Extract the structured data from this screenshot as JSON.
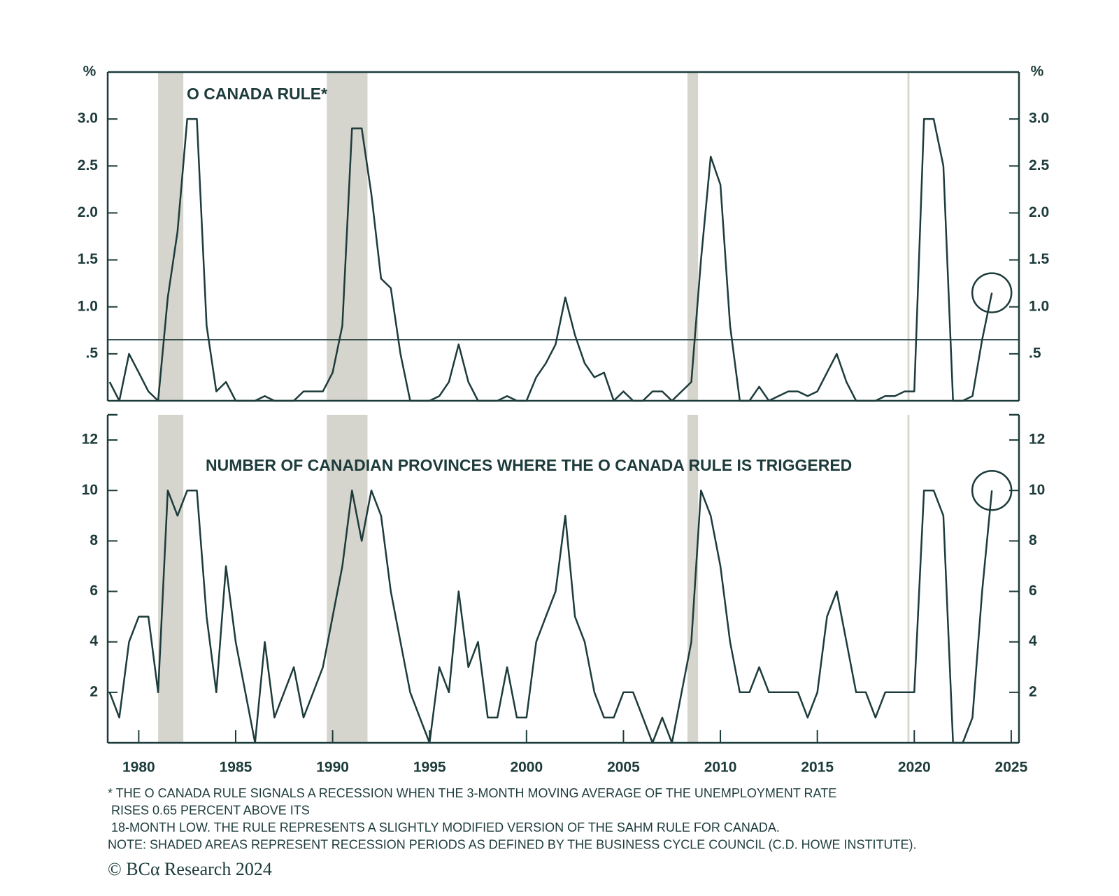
{
  "chart_data": [
    {
      "type": "line",
      "title": "O CANADA RULE*",
      "y_label": "%",
      "y2_label": "%",
      "xlim": [
        1978.4,
        2025.4
      ],
      "ylim": [
        0,
        3.5
      ],
      "y2lim": [
        0,
        3.5
      ],
      "yticks": [
        {
          "value": 0.5,
          "label": ".5"
        },
        {
          "value": 1,
          "label": "1.0"
        },
        {
          "value": 1.5,
          "label": "1.5"
        },
        {
          "value": 2,
          "label": "2.0"
        },
        {
          "value": 2.5,
          "label": "2.5"
        },
        {
          "value": 3,
          "label": "3.0"
        }
      ],
      "y2ticks": [
        {
          "value": 0.5,
          "label": ".5"
        },
        {
          "value": 1,
          "label": "1.0"
        },
        {
          "value": 1.5,
          "label": "1.5"
        },
        {
          "value": 2,
          "label": "2.0"
        },
        {
          "value": 2.5,
          "label": "2.5"
        },
        {
          "value": 3,
          "label": "3.0"
        }
      ],
      "threshold": 0.65,
      "recessions": [
        [
          1981.0,
          1982.3
        ],
        [
          1989.7,
          1991.8
        ],
        [
          2008.3,
          2008.85
        ],
        [
          2019.65,
          2019.75
        ]
      ],
      "recession_color": "#d5d5cd",
      "x": [
        1978.5,
        1979,
        1979.5,
        1980,
        1980.5,
        1981,
        1981.5,
        1982,
        1982.5,
        1983,
        1983.5,
        1984,
        1984.5,
        1985,
        1985.5,
        1986,
        1986.5,
        1987,
        1987.5,
        1988,
        1988.5,
        1989,
        1989.5,
        1990,
        1990.5,
        1991,
        1991.5,
        1992,
        1992.5,
        1993,
        1993.5,
        1994,
        1994.5,
        1995,
        1995.5,
        1996,
        1996.5,
        1997,
        1997.5,
        1998,
        1998.5,
        1999,
        1999.5,
        2000,
        2000.5,
        2001,
        2001.5,
        2002,
        2002.5,
        2003,
        2003.5,
        2004,
        2004.5,
        2005,
        2005.5,
        2006,
        2006.5,
        2007,
        2007.5,
        2008,
        2008.5,
        2009,
        2009.5,
        2010,
        2010.5,
        2011,
        2011.5,
        2012,
        2012.5,
        2013,
        2013.5,
        2014,
        2014.5,
        2015,
        2015.5,
        2016,
        2016.5,
        2017,
        2017.5,
        2018,
        2018.5,
        2019,
        2019.5,
        2020,
        2020.5,
        2021,
        2021.5,
        2022,
        2022.5,
        2023,
        2023.5,
        2024
      ],
      "color": "#1d3b3b",
      "values": [
        0.2,
        0,
        0.5,
        0.3,
        0.1,
        0,
        1.1,
        1.8,
        3.0,
        3.0,
        0.8,
        0.1,
        0.2,
        0,
        0,
        0,
        0.05,
        0,
        0,
        0,
        0.1,
        0.1,
        0.1,
        0.3,
        0.8,
        2.9,
        2.9,
        2.2,
        1.3,
        1.2,
        0.5,
        0,
        0,
        0,
        0.05,
        0.2,
        0.6,
        0.2,
        0,
        0,
        0,
        0.05,
        0,
        0,
        0.25,
        0.4,
        0.6,
        1.1,
        0.7,
        0.4,
        0.25,
        0.3,
        0,
        0.1,
        0,
        0,
        0.1,
        0.1,
        0,
        0.1,
        0.2,
        1.5,
        2.6,
        2.3,
        0.8,
        0,
        0,
        0.15,
        0,
        0.05,
        0.1,
        0.1,
        0.05,
        0.1,
        0.3,
        0.5,
        0.2,
        0,
        0,
        0,
        0.05,
        0.05,
        0.1,
        0.1,
        3.0,
        3.0,
        2.5,
        0,
        0,
        0.05,
        0.65,
        1.15
      ]
    },
    {
      "type": "line",
      "title": "NUMBER OF CANADIAN PROVINCES WHERE THE O CANADA RULE IS TRIGGERED",
      "xlim": [
        1978.4,
        2025.4
      ],
      "ylim": [
        0,
        13
      ],
      "y2lim": [
        0,
        13
      ],
      "xticks": [
        1980,
        1985,
        1990,
        1995,
        2000,
        2005,
        2010,
        2015,
        2020,
        2025
      ],
      "yticks": [
        2,
        4,
        6,
        8,
        10,
        12
      ],
      "y2ticks": [
        2,
        4,
        6,
        8,
        10,
        12
      ],
      "recessions": [
        [
          1981.0,
          1982.3
        ],
        [
          1989.7,
          1991.8
        ],
        [
          2008.3,
          2008.85
        ],
        [
          2019.65,
          2019.75
        ]
      ],
      "recession_color": "#d5d5cd",
      "x": [
        1978.5,
        1979,
        1979.5,
        1980,
        1980.5,
        1981,
        1981.5,
        1982,
        1982.5,
        1983,
        1983.5,
        1984,
        1984.5,
        1985,
        1985.5,
        1986,
        1986.5,
        1987,
        1987.5,
        1988,
        1988.5,
        1989,
        1989.5,
        1990,
        1990.5,
        1991,
        1991.5,
        1992,
        1992.5,
        1993,
        1993.5,
        1994,
        1994.5,
        1995,
        1995.5,
        1996,
        1996.5,
        1997,
        1997.5,
        1998,
        1998.5,
        1999,
        1999.5,
        2000,
        2000.5,
        2001,
        2001.5,
        2002,
        2002.5,
        2003,
        2003.5,
        2004,
        2004.5,
        2005,
        2005.5,
        2006,
        2006.5,
        2007,
        2007.5,
        2008,
        2008.5,
        2009,
        2009.5,
        2010,
        2010.5,
        2011,
        2011.5,
        2012,
        2012.5,
        2013,
        2013.5,
        2014,
        2014.5,
        2015,
        2015.5,
        2016,
        2016.5,
        2017,
        2017.5,
        2018,
        2018.5,
        2019,
        2019.5,
        2020,
        2020.5,
        2021,
        2021.5,
        2022,
        2022.5,
        2023,
        2023.5,
        2024
      ],
      "color": "#1d3b3b",
      "values": [
        2,
        1,
        4,
        5,
        5,
        2,
        10,
        9,
        10,
        10,
        5,
        2,
        7,
        4,
        2,
        0,
        4,
        1,
        2,
        3,
        1,
        2,
        3,
        5,
        7,
        10,
        8,
        10,
        9,
        6,
        4,
        2,
        1,
        0,
        3,
        2,
        6,
        3,
        4,
        1,
        1,
        3,
        1,
        1,
        4,
        5,
        6,
        9,
        5,
        4,
        2,
        1,
        1,
        2,
        2,
        1,
        0,
        1,
        0,
        2,
        4,
        10,
        9,
        7,
        4,
        2,
        2,
        3,
        2,
        2,
        2,
        2,
        1,
        2,
        5,
        6,
        4,
        2,
        2,
        1,
        2,
        2,
        2,
        2,
        10,
        10,
        9,
        0,
        0,
        1,
        6,
        10
      ]
    }
  ],
  "footnotes": [
    "* THE O CANADA RULE SIGNALS A RECESSION WHEN THE 3-MONTH MOVING AVERAGE OF THE UNEMPLOYMENT RATE",
    " RISES 0.65 PERCENT ABOVE ITS",
    " 18-MONTH LOW. THE RULE REPRESENTS A SLIGHTLY MODIFIED VERSION OF THE SAHM RULE FOR CANADA.",
    "NOTE: SHADED AREAS REPRESENT RECESSION PERIODS AS DEFINED BY THE BUSINESS CYCLE COUNCIL (C.D. HOWE INSTITUTE)."
  ],
  "source": "© BCα Research 2024"
}
